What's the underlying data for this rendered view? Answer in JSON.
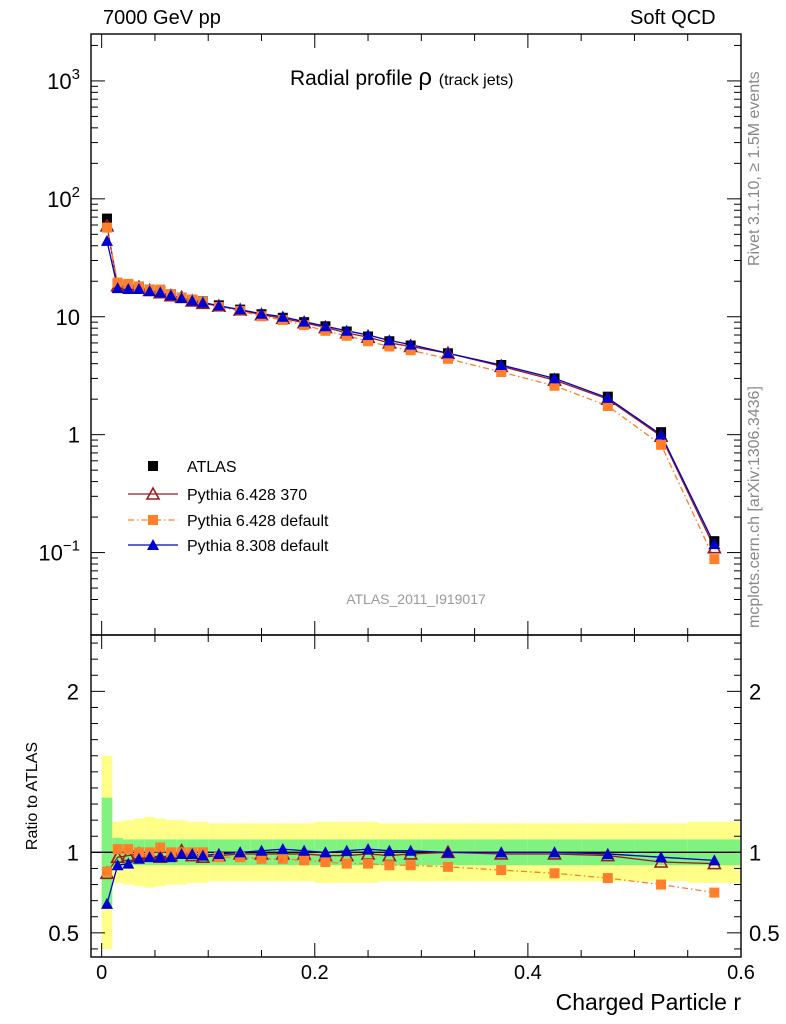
{
  "header": {
    "left": "7000 GeV pp",
    "right": "Soft QCD"
  },
  "side_labels": {
    "rivet": "Rivet 3.1.10, ≥ 1.5M events",
    "source": "mcplots.cern.ch [arXiv:1306.3436]"
  },
  "chart_data": [
    {
      "type": "line",
      "title": "Radial profile ρ",
      "title_main": "Radial profile",
      "title_rho": "ρ",
      "title_sub": "(track jets)",
      "watermark": "ATLAS_2011_I919017",
      "xlabel": "Charged Particle r",
      "ylabel": "",
      "yscale": "log",
      "ylim": [
        0.02,
        2500
      ],
      "xlim": [
        -0.01,
        0.6
      ],
      "y_tick_labels": [
        "10⁻¹",
        "1",
        "10",
        "10²",
        "10³"
      ],
      "legend_position": "lower-left",
      "x": [
        0.005,
        0.015,
        0.025,
        0.035,
        0.045,
        0.055,
        0.065,
        0.075,
        0.085,
        0.095,
        0.11,
        0.13,
        0.15,
        0.17,
        0.19,
        0.21,
        0.23,
        0.25,
        0.27,
        0.29,
        0.325,
        0.375,
        0.425,
        0.475,
        0.525,
        0.575
      ],
      "series": [
        {
          "name": "ATLAS",
          "color": "#000000",
          "marker": "square",
          "values": [
            68,
            19,
            18.5,
            18,
            17,
            16.5,
            15.5,
            14.5,
            14,
            13.5,
            12.5,
            11.5,
            10.5,
            9.8,
            9,
            8.3,
            7.5,
            6.8,
            6.2,
            5.7,
            4.9,
            3.9,
            3.0,
            2.1,
            1.05,
            0.125
          ]
        },
        {
          "name": "Pythia 6.428 370",
          "color": "#9b1b1b",
          "marker": "open-triangle",
          "values": [
            59,
            18.3,
            18,
            17.8,
            16.7,
            16,
            15.1,
            14.6,
            13.6,
            13,
            12.3,
            11.4,
            10.4,
            9.7,
            8.9,
            8.1,
            7.3,
            6.7,
            6.0,
            5.6,
            4.9,
            3.8,
            2.9,
            2.0,
            0.97,
            0.11
          ]
        },
        {
          "name": "Pythia 6.428 default",
          "color": "#ff7f2a",
          "marker": "square",
          "values": [
            57,
            19.5,
            19,
            18,
            17,
            17,
            15.5,
            14.5,
            14,
            13.4,
            12.1,
            11.2,
            10.1,
            9.4,
            8.5,
            7.6,
            6.9,
            6.2,
            5.6,
            5.2,
            4.4,
            3.4,
            2.6,
            1.75,
            0.82,
            0.088
          ]
        },
        {
          "name": "Pythia 8.308 default",
          "color": "#0000cc",
          "marker": "triangle",
          "values": [
            44,
            17.5,
            17.2,
            17.2,
            16.5,
            16.1,
            15.2,
            14.4,
            13.7,
            13.2,
            12.4,
            11.5,
            10.6,
            10.0,
            9.1,
            8.3,
            7.6,
            7.0,
            6.3,
            5.8,
            4.9,
            3.9,
            3.0,
            2.05,
            1.0,
            0.118
          ]
        }
      ]
    },
    {
      "type": "line",
      "ylabel": "Ratio to ATLAS",
      "xlabel": "Charged Particle r",
      "ylim": [
        0.35,
        2.35
      ],
      "xlim": [
        -0.01,
        0.6
      ],
      "y_ticks": [
        0.5,
        1,
        2
      ],
      "y_tick_labels": [
        "0.5",
        "1",
        "2"
      ],
      "x_ticks": [
        0,
        0.2,
        0.4,
        0.6
      ],
      "x_tick_labels": [
        "0",
        "0.2",
        "0.4",
        "0.6"
      ],
      "x": [
        0.005,
        0.015,
        0.025,
        0.035,
        0.045,
        0.055,
        0.065,
        0.075,
        0.085,
        0.095,
        0.11,
        0.13,
        0.15,
        0.17,
        0.19,
        0.21,
        0.23,
        0.25,
        0.27,
        0.29,
        0.325,
        0.375,
        0.425,
        0.475,
        0.525,
        0.575
      ],
      "band_edges": [
        0,
        0.01,
        0.02,
        0.03,
        0.04,
        0.05,
        0.06,
        0.07,
        0.08,
        0.09,
        0.1,
        0.12,
        0.14,
        0.16,
        0.18,
        0.2,
        0.22,
        0.24,
        0.26,
        0.28,
        0.3,
        0.35,
        0.4,
        0.45,
        0.5,
        0.55,
        0.6
      ],
      "band_inner": [
        0.34,
        0.09,
        0.08,
        0.08,
        0.08,
        0.08,
        0.08,
        0.08,
        0.08,
        0.08,
        0.08,
        0.08,
        0.08,
        0.08,
        0.08,
        0.08,
        0.08,
        0.08,
        0.08,
        0.08,
        0.08,
        0.08,
        0.08,
        0.08,
        0.08,
        0.08
      ],
      "band_outer": [
        0.6,
        0.19,
        0.2,
        0.21,
        0.22,
        0.21,
        0.2,
        0.2,
        0.19,
        0.19,
        0.18,
        0.18,
        0.18,
        0.18,
        0.18,
        0.19,
        0.19,
        0.19,
        0.18,
        0.18,
        0.18,
        0.18,
        0.18,
        0.18,
        0.18,
        0.19
      ],
      "band_colors": {
        "inner": "#7ff27f",
        "outer": "#ffff88"
      },
      "series": [
        {
          "name": "Pythia 6.428 370",
          "color": "#9b1b1b",
          "marker": "open-triangle",
          "values": [
            0.87,
            0.97,
            0.98,
            0.99,
            0.98,
            0.97,
            0.98,
            1.01,
            0.98,
            0.97,
            0.98,
            0.99,
            0.99,
            0.99,
            0.99,
            0.98,
            0.98,
            0.99,
            0.98,
            0.99,
            1.0,
            0.99,
            0.99,
            0.98,
            0.94,
            0.93
          ]
        },
        {
          "name": "Pythia 6.428 default",
          "color": "#ff7f2a",
          "marker": "square",
          "values": [
            0.88,
            1.02,
            1.02,
            1.0,
            1.0,
            1.03,
            1.0,
            1.0,
            1.0,
            1.0,
            0.97,
            0.97,
            0.96,
            0.96,
            0.95,
            0.94,
            0.93,
            0.93,
            0.92,
            0.92,
            0.91,
            0.89,
            0.87,
            0.84,
            0.8,
            0.75
          ]
        },
        {
          "name": "Pythia 8.308 default",
          "color": "#0000cc",
          "marker": "triangle",
          "values": [
            0.68,
            0.92,
            0.93,
            0.96,
            0.97,
            0.97,
            0.97,
            0.99,
            0.99,
            0.98,
            0.99,
            1.0,
            1.01,
            1.02,
            1.01,
            1.0,
            1.01,
            1.02,
            1.01,
            1.01,
            1.0,
            1.0,
            1.0,
            0.99,
            0.97,
            0.95
          ]
        }
      ]
    }
  ]
}
